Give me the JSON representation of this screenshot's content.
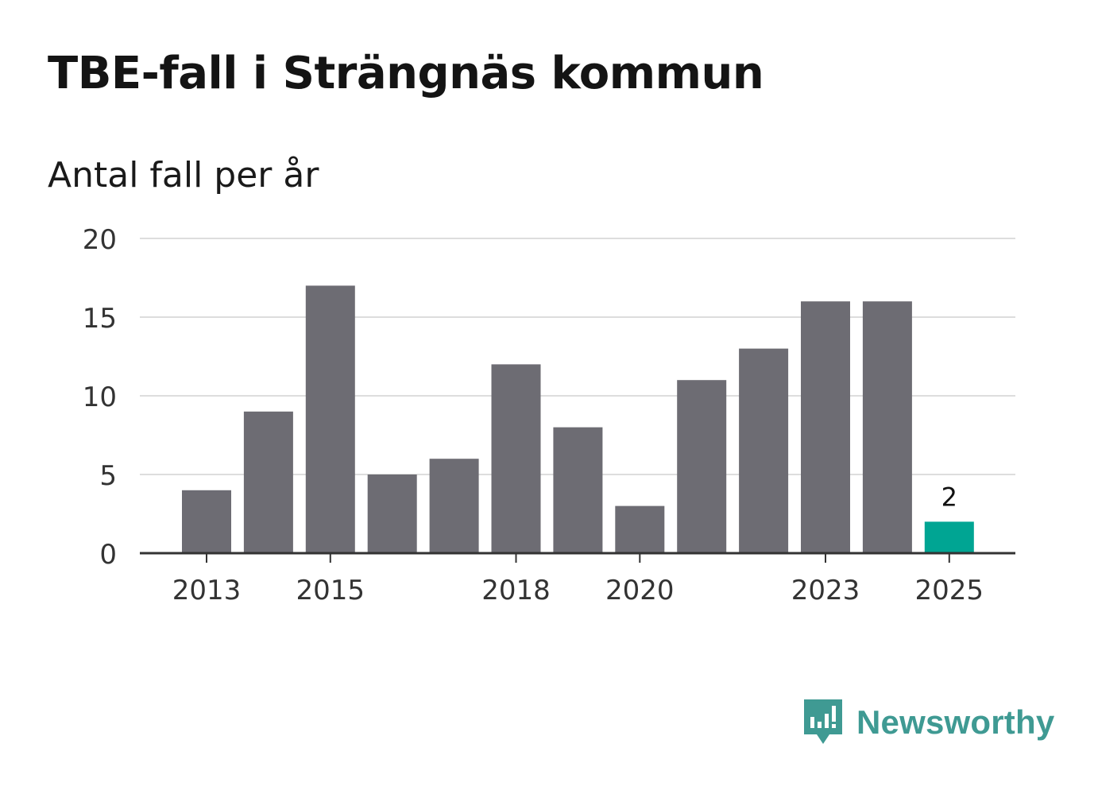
{
  "title": "TBE-fall i Strängnäs kommun",
  "subtitle": "Antal fall per år",
  "brand": {
    "name": "Newsworthy",
    "color": "#3f9a93",
    "icon": "newsworthy-logo-icon"
  },
  "colors": {
    "bar": "#6d6c73",
    "highlight": "#00a593",
    "grid": "#dddddd",
    "axis": "#333333",
    "text": "#333333"
  },
  "chart_data": {
    "type": "bar",
    "categories": [
      "2013",
      "2014",
      "2015",
      "2016",
      "2017",
      "2018",
      "2019",
      "2020",
      "2021",
      "2022",
      "2023",
      "2024",
      "2025"
    ],
    "values": [
      4,
      9,
      17,
      5,
      6,
      12,
      8,
      3,
      11,
      13,
      16,
      16,
      2
    ],
    "x_tick_labels": [
      "2013",
      "2015",
      "2018",
      "2020",
      "2023",
      "2025"
    ],
    "yticks": [
      0,
      5,
      10,
      15,
      20
    ],
    "ylim": [
      0,
      20
    ],
    "highlight_index": 12,
    "data_labels": [
      {
        "category": "2025",
        "text": "2"
      }
    ],
    "grid": true,
    "legend": false
  }
}
